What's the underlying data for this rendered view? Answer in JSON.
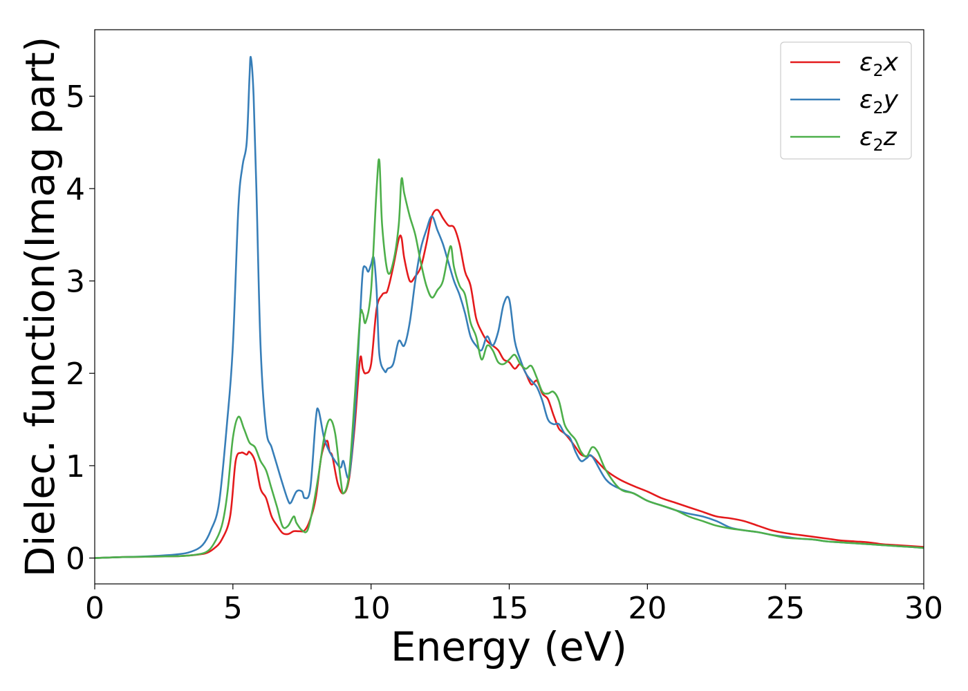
{
  "chart_data": {
    "type": "line",
    "title": "",
    "xlabel": "Energy (eV)",
    "ylabel": "Dielec. function(Imag part)",
    "xlim": [
      0,
      30
    ],
    "ylim": [
      -0.28,
      5.72
    ],
    "xticks": [
      0,
      5,
      10,
      15,
      20,
      25,
      30
    ],
    "yticks": [
      0,
      1,
      2,
      3,
      4,
      5
    ],
    "grid": false,
    "legend_position": "top-right",
    "series": [
      {
        "name": "ε2x",
        "legend": {
          "base": "ε",
          "sub": "2",
          "var": "x"
        },
        "color": "#e41a1c",
        "x": [
          0,
          1,
          2,
          3,
          3.5,
          4,
          4.3,
          4.6,
          4.9,
          5.1,
          5.3,
          5.5,
          5.6,
          5.8,
          6.0,
          6.2,
          6.4,
          6.6,
          6.8,
          7.0,
          7.2,
          7.4,
          7.6,
          7.8,
          8.0,
          8.2,
          8.4,
          8.5,
          8.6,
          8.8,
          9.0,
          9.2,
          9.4,
          9.6,
          9.7,
          9.8,
          10.0,
          10.2,
          10.4,
          10.5,
          10.6,
          10.8,
          11.0,
          11.1,
          11.2,
          11.4,
          11.6,
          11.8,
          12.0,
          12.2,
          12.4,
          12.6,
          12.8,
          13.0,
          13.2,
          13.4,
          13.6,
          13.8,
          14.0,
          14.2,
          14.4,
          14.6,
          14.8,
          15.0,
          15.2,
          15.4,
          15.6,
          15.8,
          16.0,
          16.2,
          16.4,
          16.6,
          16.8,
          17.0,
          17.2,
          17.4,
          17.6,
          17.8,
          18.0,
          18.5,
          19.0,
          19.5,
          20.0,
          20.5,
          21.0,
          21.5,
          22.0,
          22.5,
          23.0,
          23.5,
          24.0,
          24.5,
          25.0,
          25.5,
          26.0,
          26.5,
          27.0,
          27.5,
          28.0,
          28.5,
          29.0,
          29.5,
          30.0
        ],
        "y": [
          0.0,
          0.01,
          0.015,
          0.02,
          0.03,
          0.05,
          0.1,
          0.2,
          0.45,
          1.05,
          1.14,
          1.12,
          1.15,
          1.05,
          0.75,
          0.65,
          0.45,
          0.35,
          0.27,
          0.26,
          0.29,
          0.29,
          0.3,
          0.42,
          0.65,
          1.1,
          1.27,
          1.15,
          1.1,
          0.8,
          0.7,
          0.85,
          1.4,
          2.15,
          2.05,
          2.0,
          2.1,
          2.7,
          2.85,
          2.87,
          2.9,
          3.15,
          3.45,
          3.47,
          3.25,
          3.0,
          3.05,
          3.15,
          3.4,
          3.7,
          3.77,
          3.68,
          3.6,
          3.58,
          3.4,
          3.1,
          2.95,
          2.6,
          2.45,
          2.35,
          2.3,
          2.25,
          2.15,
          2.12,
          2.05,
          2.1,
          2.0,
          1.88,
          1.92,
          1.78,
          1.72,
          1.55,
          1.4,
          1.35,
          1.28,
          1.2,
          1.12,
          1.1,
          1.1,
          0.95,
          0.85,
          0.78,
          0.72,
          0.65,
          0.6,
          0.55,
          0.5,
          0.45,
          0.43,
          0.4,
          0.35,
          0.3,
          0.27,
          0.25,
          0.23,
          0.21,
          0.19,
          0.18,
          0.17,
          0.15,
          0.14,
          0.13,
          0.12
        ]
      },
      {
        "name": "ε2y",
        "legend": {
          "base": "ε",
          "sub": "2",
          "var": "y"
        },
        "color": "#377eb8",
        "x": [
          0,
          1,
          2,
          3,
          3.5,
          3.9,
          4.2,
          4.5,
          4.8,
          5.0,
          5.2,
          5.35,
          5.5,
          5.6,
          5.65,
          5.75,
          5.85,
          6.0,
          6.2,
          6.4,
          6.6,
          6.8,
          7.0,
          7.1,
          7.3,
          7.5,
          7.6,
          7.8,
          8.0,
          8.1,
          8.3,
          8.5,
          8.7,
          8.9,
          9.0,
          9.2,
          9.4,
          9.6,
          9.7,
          9.8,
          9.9,
          10.0,
          10.1,
          10.2,
          10.3,
          10.5,
          10.6,
          10.8,
          11.0,
          11.2,
          11.4,
          11.6,
          11.8,
          12.0,
          12.2,
          12.4,
          12.6,
          12.8,
          13.0,
          13.2,
          13.4,
          13.6,
          13.8,
          14.0,
          14.2,
          14.4,
          14.6,
          14.8,
          15.0,
          15.2,
          15.4,
          15.6,
          15.8,
          16.0,
          16.2,
          16.4,
          16.6,
          16.8,
          17.0,
          17.2,
          17.4,
          17.6,
          17.8,
          18.0,
          18.5,
          19.0,
          19.5,
          20.0,
          20.5,
          21.0,
          21.5,
          22.0,
          22.5,
          23.0,
          23.5,
          24.0,
          24.5,
          25.0,
          25.5,
          26.0,
          26.5,
          27.0,
          27.5,
          28.0,
          28.5,
          29.0,
          29.5,
          30.0
        ],
        "y": [
          0.0,
          0.01,
          0.02,
          0.04,
          0.07,
          0.14,
          0.3,
          0.6,
          1.5,
          2.3,
          3.8,
          4.25,
          4.5,
          5.2,
          5.42,
          5.0,
          4.0,
          2.3,
          1.4,
          1.2,
          1.0,
          0.8,
          0.62,
          0.6,
          0.72,
          0.72,
          0.65,
          0.75,
          1.5,
          1.6,
          1.3,
          1.15,
          1.05,
          0.98,
          1.05,
          0.88,
          1.5,
          2.6,
          3.1,
          3.15,
          3.1,
          3.18,
          3.25,
          2.9,
          2.2,
          2.02,
          2.05,
          2.1,
          2.35,
          2.3,
          2.55,
          3.0,
          3.35,
          3.55,
          3.7,
          3.55,
          3.4,
          3.2,
          3.0,
          2.85,
          2.65,
          2.4,
          2.3,
          2.25,
          2.4,
          2.3,
          2.45,
          2.75,
          2.8,
          2.35,
          2.15,
          2.0,
          1.92,
          1.85,
          1.7,
          1.5,
          1.45,
          1.45,
          1.35,
          1.3,
          1.15,
          1.05,
          1.08,
          1.1,
          0.85,
          0.75,
          0.7,
          0.62,
          0.57,
          0.52,
          0.48,
          0.45,
          0.4,
          0.33,
          0.3,
          0.28,
          0.25,
          0.23,
          0.21,
          0.2,
          0.18,
          0.17,
          0.16,
          0.15,
          0.14,
          0.13,
          0.12,
          0.11
        ]
      },
      {
        "name": "ε2z",
        "legend": {
          "base": "ε",
          "sub": "2",
          "var": "z"
        },
        "color": "#4daf4a",
        "x": [
          0,
          1,
          2,
          3,
          3.5,
          4,
          4.3,
          4.6,
          4.8,
          5.0,
          5.2,
          5.4,
          5.6,
          5.8,
          6.0,
          6.2,
          6.4,
          6.6,
          6.8,
          7.0,
          7.2,
          7.3,
          7.5,
          7.7,
          7.9,
          8.1,
          8.3,
          8.5,
          8.7,
          8.9,
          9.0,
          9.2,
          9.4,
          9.6,
          9.7,
          9.8,
          10.0,
          10.2,
          10.3,
          10.4,
          10.6,
          10.8,
          11.0,
          11.1,
          11.2,
          11.4,
          11.6,
          11.8,
          12.0,
          12.2,
          12.4,
          12.6,
          12.8,
          12.9,
          13.0,
          13.2,
          13.4,
          13.6,
          13.8,
          14.0,
          14.2,
          14.4,
          14.6,
          14.8,
          15.0,
          15.2,
          15.4,
          15.6,
          15.8,
          16.0,
          16.2,
          16.4,
          16.6,
          16.8,
          17.0,
          17.2,
          17.4,
          17.6,
          17.8,
          18.0,
          18.2,
          18.5,
          19.0,
          19.5,
          20.0,
          20.5,
          21.0,
          21.5,
          22.0,
          22.5,
          23.0,
          23.5,
          24.0,
          24.5,
          25.0,
          25.5,
          26.0,
          26.5,
          27.0,
          27.5,
          28.0,
          28.5,
          29.0,
          29.5,
          30.0
        ],
        "y": [
          0.0,
          0.01,
          0.015,
          0.02,
          0.03,
          0.06,
          0.15,
          0.35,
          0.7,
          1.3,
          1.53,
          1.4,
          1.25,
          1.2,
          1.05,
          0.95,
          0.75,
          0.55,
          0.34,
          0.35,
          0.45,
          0.38,
          0.3,
          0.3,
          0.55,
          0.9,
          1.3,
          1.5,
          1.35,
          0.85,
          0.7,
          0.9,
          1.7,
          2.6,
          2.65,
          2.55,
          2.9,
          4.0,
          4.3,
          3.6,
          3.1,
          3.2,
          3.6,
          4.1,
          3.95,
          3.7,
          3.5,
          3.2,
          2.95,
          2.82,
          2.9,
          3.0,
          3.3,
          3.37,
          3.15,
          2.95,
          2.85,
          2.55,
          2.4,
          2.15,
          2.3,
          2.25,
          2.12,
          2.1,
          2.15,
          2.2,
          2.1,
          2.05,
          2.08,
          1.95,
          1.8,
          1.78,
          1.8,
          1.7,
          1.45,
          1.35,
          1.28,
          1.15,
          1.1,
          1.2,
          1.15,
          0.95,
          0.75,
          0.7,
          0.62,
          0.57,
          0.52,
          0.45,
          0.4,
          0.35,
          0.32,
          0.3,
          0.28,
          0.25,
          0.22,
          0.21,
          0.2,
          0.18,
          0.17,
          0.16,
          0.15,
          0.14,
          0.13,
          0.12,
          0.11
        ]
      }
    ]
  }
}
